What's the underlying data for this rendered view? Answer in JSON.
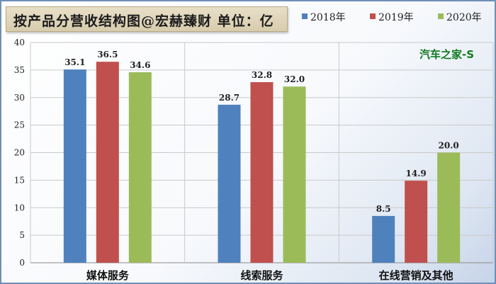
{
  "title": "按产品分营收结构图@宏赫臻财 单位：亿",
  "watermark": "汽车之家-S",
  "chart_data": {
    "type": "bar",
    "title": "按产品分营收结构图@宏赫臻财 单位：亿",
    "categories": [
      "媒体服务",
      "线索服务",
      "在线营销及其他"
    ],
    "series": [
      {
        "name": "2018年",
        "color": "#4f81bd",
        "values": [
          35.1,
          28.7,
          8.5
        ]
      },
      {
        "name": "2019年",
        "color": "#c0504d",
        "values": [
          36.5,
          32.8,
          14.9
        ]
      },
      {
        "name": "2020年",
        "color": "#9bbb59",
        "values": [
          34.6,
          32.0,
          20.0
        ]
      }
    ],
    "ylim": [
      0,
      40
    ],
    "yticks": [
      0,
      5,
      10,
      15,
      20,
      25,
      30,
      35,
      40
    ],
    "grid": true,
    "legend_position": "top-right",
    "xlabel": "",
    "ylabel": ""
  }
}
